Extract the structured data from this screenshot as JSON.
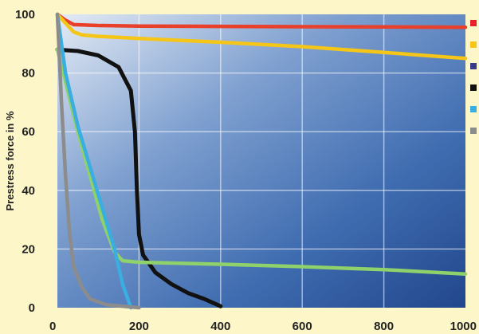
{
  "chart_data": {
    "type": "line",
    "title": "",
    "xlabel": "",
    "ylabel": "Prestress force in %",
    "xlim": [
      0,
      1000
    ],
    "ylim": [
      0,
      100
    ],
    "x_ticks": [
      "0",
      "200",
      "400",
      "600",
      "800",
      "1000"
    ],
    "y_ticks": [
      "0",
      "20",
      "40",
      "60",
      "80",
      "100"
    ],
    "grid": true,
    "legend": "right, colour markers only (labels not visible)",
    "series": [
      {
        "color": "#e8402a",
        "points": [
          [
            0,
            100
          ],
          [
            20,
            98
          ],
          [
            40,
            96.5
          ],
          [
            100,
            96.2
          ],
          [
            200,
            96
          ],
          [
            400,
            95.9
          ],
          [
            600,
            95.8
          ],
          [
            800,
            95.7
          ],
          [
            1000,
            95.6
          ]
        ]
      },
      {
        "color": "#f5c518",
        "points": [
          [
            0,
            100
          ],
          [
            20,
            97
          ],
          [
            40,
            94
          ],
          [
            60,
            93
          ],
          [
            100,
            92.5
          ],
          [
            200,
            91.8
          ],
          [
            400,
            90.5
          ],
          [
            600,
            89
          ],
          [
            800,
            87
          ],
          [
            1000,
            85
          ]
        ]
      },
      {
        "color": "#111111",
        "points": [
          [
            0,
            88
          ],
          [
            50,
            87.5
          ],
          [
            100,
            86
          ],
          [
            150,
            82
          ],
          [
            180,
            74
          ],
          [
            190,
            60
          ],
          [
            195,
            40
          ],
          [
            200,
            25
          ],
          [
            210,
            18
          ],
          [
            240,
            12
          ],
          [
            280,
            8
          ],
          [
            320,
            5
          ],
          [
            360,
            3
          ],
          [
            400,
            0.5
          ]
        ]
      },
      {
        "color": "#8fd16a",
        "points": [
          [
            0,
            88
          ],
          [
            20,
            77
          ],
          [
            50,
            60
          ],
          [
            80,
            45
          ],
          [
            110,
            30
          ],
          [
            140,
            19
          ],
          [
            160,
            16
          ],
          [
            200,
            15.5
          ],
          [
            400,
            14.8
          ],
          [
            600,
            14
          ],
          [
            800,
            13
          ],
          [
            1000,
            11.5
          ]
        ]
      },
      {
        "color": "#3aaee0",
        "points": [
          [
            0,
            100
          ],
          [
            20,
            80
          ],
          [
            50,
            62
          ],
          [
            80,
            48
          ],
          [
            110,
            34
          ],
          [
            140,
            20
          ],
          [
            160,
            8
          ],
          [
            180,
            0
          ]
        ]
      },
      {
        "color": "#8c8c8c",
        "points": [
          [
            0,
            100
          ],
          [
            10,
            70
          ],
          [
            20,
            45
          ],
          [
            30,
            25
          ],
          [
            40,
            14
          ],
          [
            60,
            7
          ],
          [
            80,
            3
          ],
          [
            120,
            1
          ],
          [
            200,
            0
          ]
        ]
      }
    ],
    "legend_markers": [
      "#e8202a",
      "#f5c518",
      "#3a3a8c",
      "#111111",
      "#3aaee0",
      "#8c8c8c"
    ]
  }
}
